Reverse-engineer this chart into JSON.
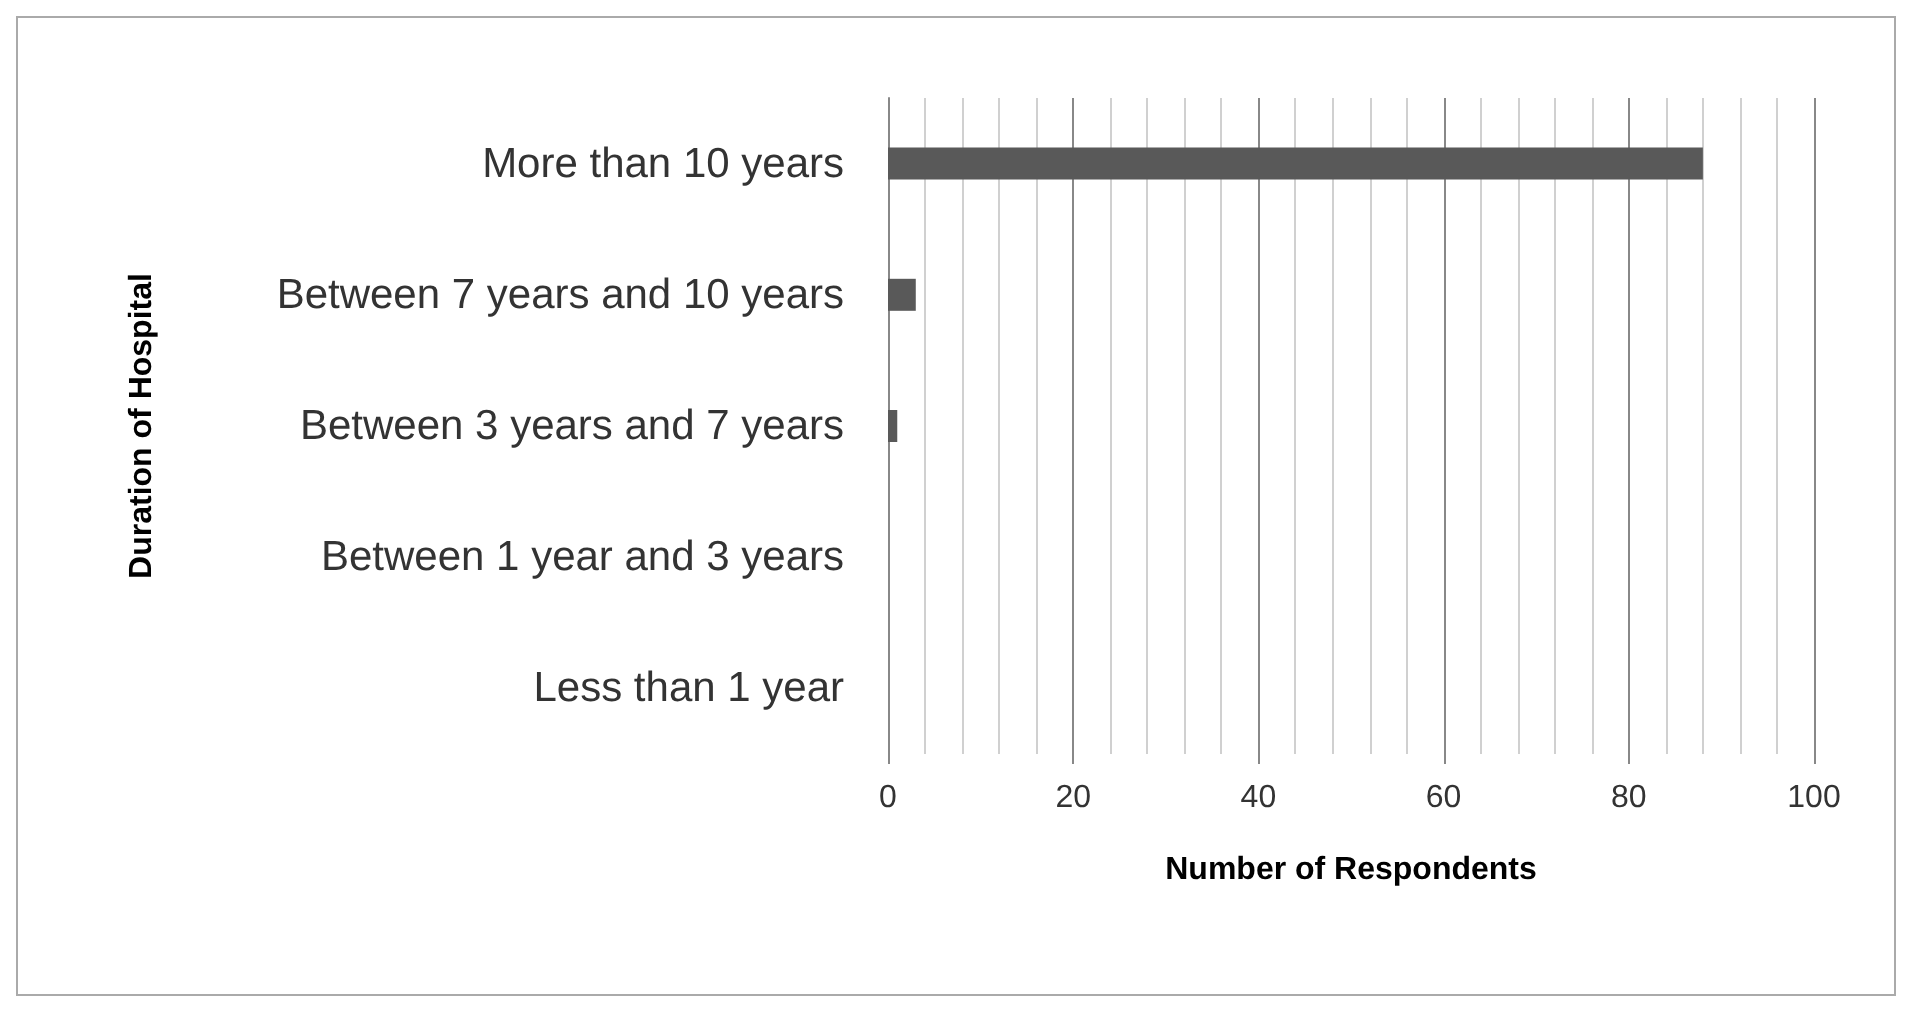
{
  "chart_data": {
    "type": "bar",
    "orientation": "horizontal",
    "xlabel": "Number of Respondents",
    "ylabel": "Duration of Hospital",
    "categories": [
      "More than 10 years",
      "Between 7 years and 10 years",
      "Between 3 years and 7 years",
      "Between 1 year and 3 years",
      "Less than 1 year"
    ],
    "values": [
      88,
      3,
      1,
      0,
      0
    ],
    "color": "#595959",
    "xlim": [
      0,
      100
    ],
    "xticks": [
      0,
      20,
      40,
      60,
      80,
      100
    ],
    "grid": "x"
  }
}
